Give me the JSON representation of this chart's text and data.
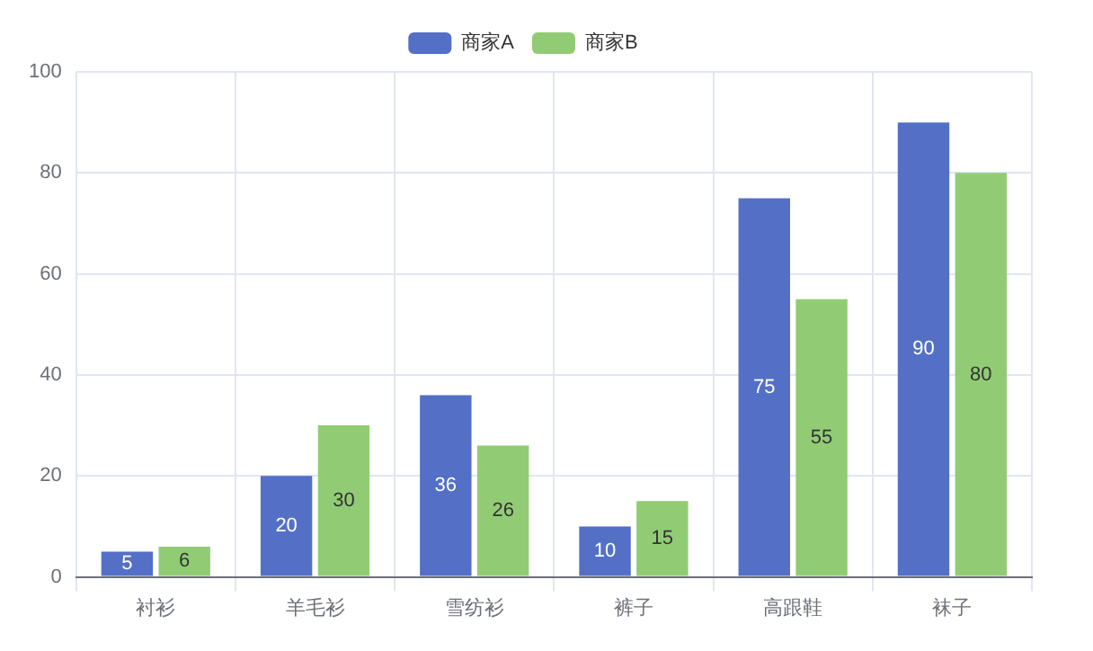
{
  "chart_data": {
    "type": "bar",
    "categories": [
      "衬衫",
      "羊毛衫",
      "雪纺衫",
      "裤子",
      "高跟鞋",
      "袜子"
    ],
    "series": [
      {
        "name": "商家A",
        "color": "#5470c6",
        "values": [
          5,
          20,
          36,
          10,
          75,
          90
        ]
      },
      {
        "name": "商家B",
        "color": "#91cc75",
        "values": [
          6,
          30,
          26,
          15,
          55,
          80
        ]
      }
    ],
    "ylim": [
      0,
      100
    ],
    "yticks": [
      0,
      20,
      40,
      60,
      80,
      100
    ],
    "grid": true,
    "legend": "top",
    "data_labels": true
  }
}
